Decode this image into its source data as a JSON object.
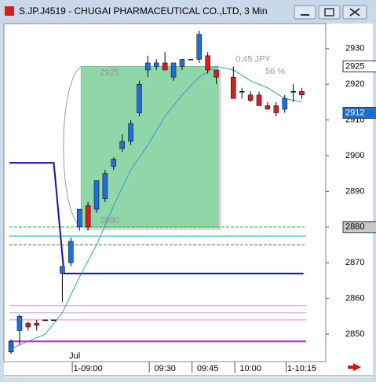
{
  "window_title": "S.JP.J4519 - CHUGAI PHARMACEUTICAL CO.,LTD, 3 Min",
  "chart_data": {
    "type": "candlestick",
    "ylim": [
      2842.3,
      2937
    ],
    "yticks": [
      2850,
      2860,
      2870,
      2880,
      2890,
      2900,
      2910,
      2920,
      2930
    ],
    "xlim": [
      -0.83,
      36.8
    ],
    "xticks": [
      {
        "value": 9,
        "label": "1-09:00"
      },
      {
        "value": 18,
        "label": "09:30"
      },
      {
        "value": 23,
        "label": "09:45"
      },
      {
        "value": 28,
        "label": "10:00"
      },
      {
        "value": 34,
        "label": "1-10:15"
      }
    ],
    "month_label": "Jul",
    "up_color": "#1f6fd6",
    "down_color": "#d42020",
    "flat_color": "#000000",
    "candles": {
      "x": [
        0,
        1,
        2,
        3,
        4,
        5,
        6,
        7,
        8,
        9,
        10,
        11,
        12,
        13,
        14,
        15,
        16,
        17,
        18,
        19,
        20,
        21,
        22,
        23,
        24,
        26,
        27,
        28,
        29,
        30,
        31,
        32,
        33,
        34
      ],
      "open": [
        2845,
        2851,
        2853,
        2853,
        2854,
        2854,
        2867,
        2870,
        2880,
        2886,
        2885,
        2888,
        2897,
        2902,
        2904,
        2912,
        2924,
        2925,
        2926,
        2922,
        2925,
        2927,
        2927,
        2928,
        2924,
        2922,
        2918,
        2917,
        2917,
        2914,
        2914,
        2913,
        2918,
        2918
      ],
      "high": [
        2848.5,
        2855.5,
        2853.5,
        2854,
        2854,
        2854,
        2869,
        2877,
        2885,
        2887,
        2893,
        2896,
        2899.5,
        2906,
        2910,
        2921,
        2928,
        2927,
        2929,
        2926,
        2927,
        2927,
        2935,
        2929,
        2924,
        2925,
        2919,
        2918,
        2918,
        2915,
        2915,
        2917,
        2920,
        2919
      ],
      "low": [
        2844.5,
        2847,
        2851,
        2851,
        2854,
        2854,
        2859,
        2869,
        2879,
        2879,
        2884,
        2887,
        2896,
        2901,
        2903,
        2911,
        2922,
        2924,
        2924,
        2921,
        2924,
        2927,
        2926,
        2923,
        2920,
        2916,
        2916,
        2915,
        2914,
        2913,
        2911,
        2912,
        2915,
        2916
      ],
      "close": [
        2848,
        2855,
        2852,
        2852.5,
        2854,
        2854,
        2869,
        2876,
        2885,
        2880,
        2893,
        2895,
        2899,
        2904,
        2909,
        2920,
        2926,
        2926,
        2924,
        2926,
        2927,
        2927,
        2934,
        2924,
        2922,
        2916,
        2918,
        2915.5,
        2914,
        2913,
        2912,
        2916,
        2918,
        2917
      ]
    },
    "moving_average": {
      "color": "#2a9fd0",
      "x": [
        0,
        4,
        6,
        8,
        10,
        12,
        14,
        16,
        18,
        20,
        22,
        24,
        26,
        28,
        30,
        32,
        34
      ],
      "values": [
        2846,
        2850,
        2856,
        2866,
        2875,
        2886,
        2896,
        2903,
        2911,
        2917,
        2922,
        2925,
        2924,
        2921,
        2919,
        2916,
        2915
      ]
    },
    "step_line": {
      "color": "#1010c0",
      "x": [
        -0.2,
        5,
        6.2,
        34.2
      ],
      "values": [
        2898,
        2898,
        2867,
        2867
      ]
    },
    "levels": [
      {
        "value": 2880,
        "color": "#40b040",
        "dashed": true
      },
      {
        "value": 2875,
        "color": "#40b040",
        "dashed": true
      },
      {
        "value": 2877.5,
        "color": "#20b8c8",
        "dashed": false
      },
      {
        "value": 2858,
        "color": "#f0a0c8",
        "dashed": false
      },
      {
        "value": 2856,
        "color": "#f0a0c8",
        "dashed": false
      },
      {
        "value": 2854,
        "color": "#f0a0c8",
        "dashed": false
      },
      {
        "value": 2848,
        "color": "#e020d0",
        "dashed": false
      }
    ],
    "box": {
      "x0": 8.2,
      "x1": 24.2,
      "top": 2925,
      "bottom": 2880,
      "color": "#8fd6a8"
    },
    "box_size_label": "0.45  JPY",
    "box_pct_label": "56 %",
    "price_marks": [
      2925,
      2912,
      2880
    ],
    "price_mark_colors": [
      "#ffffff",
      "#1a6fd8",
      "#c8c8c8"
    ],
    "price_mark_text_colors": [
      "#000000",
      "#ffffff",
      "#000000"
    ]
  }
}
